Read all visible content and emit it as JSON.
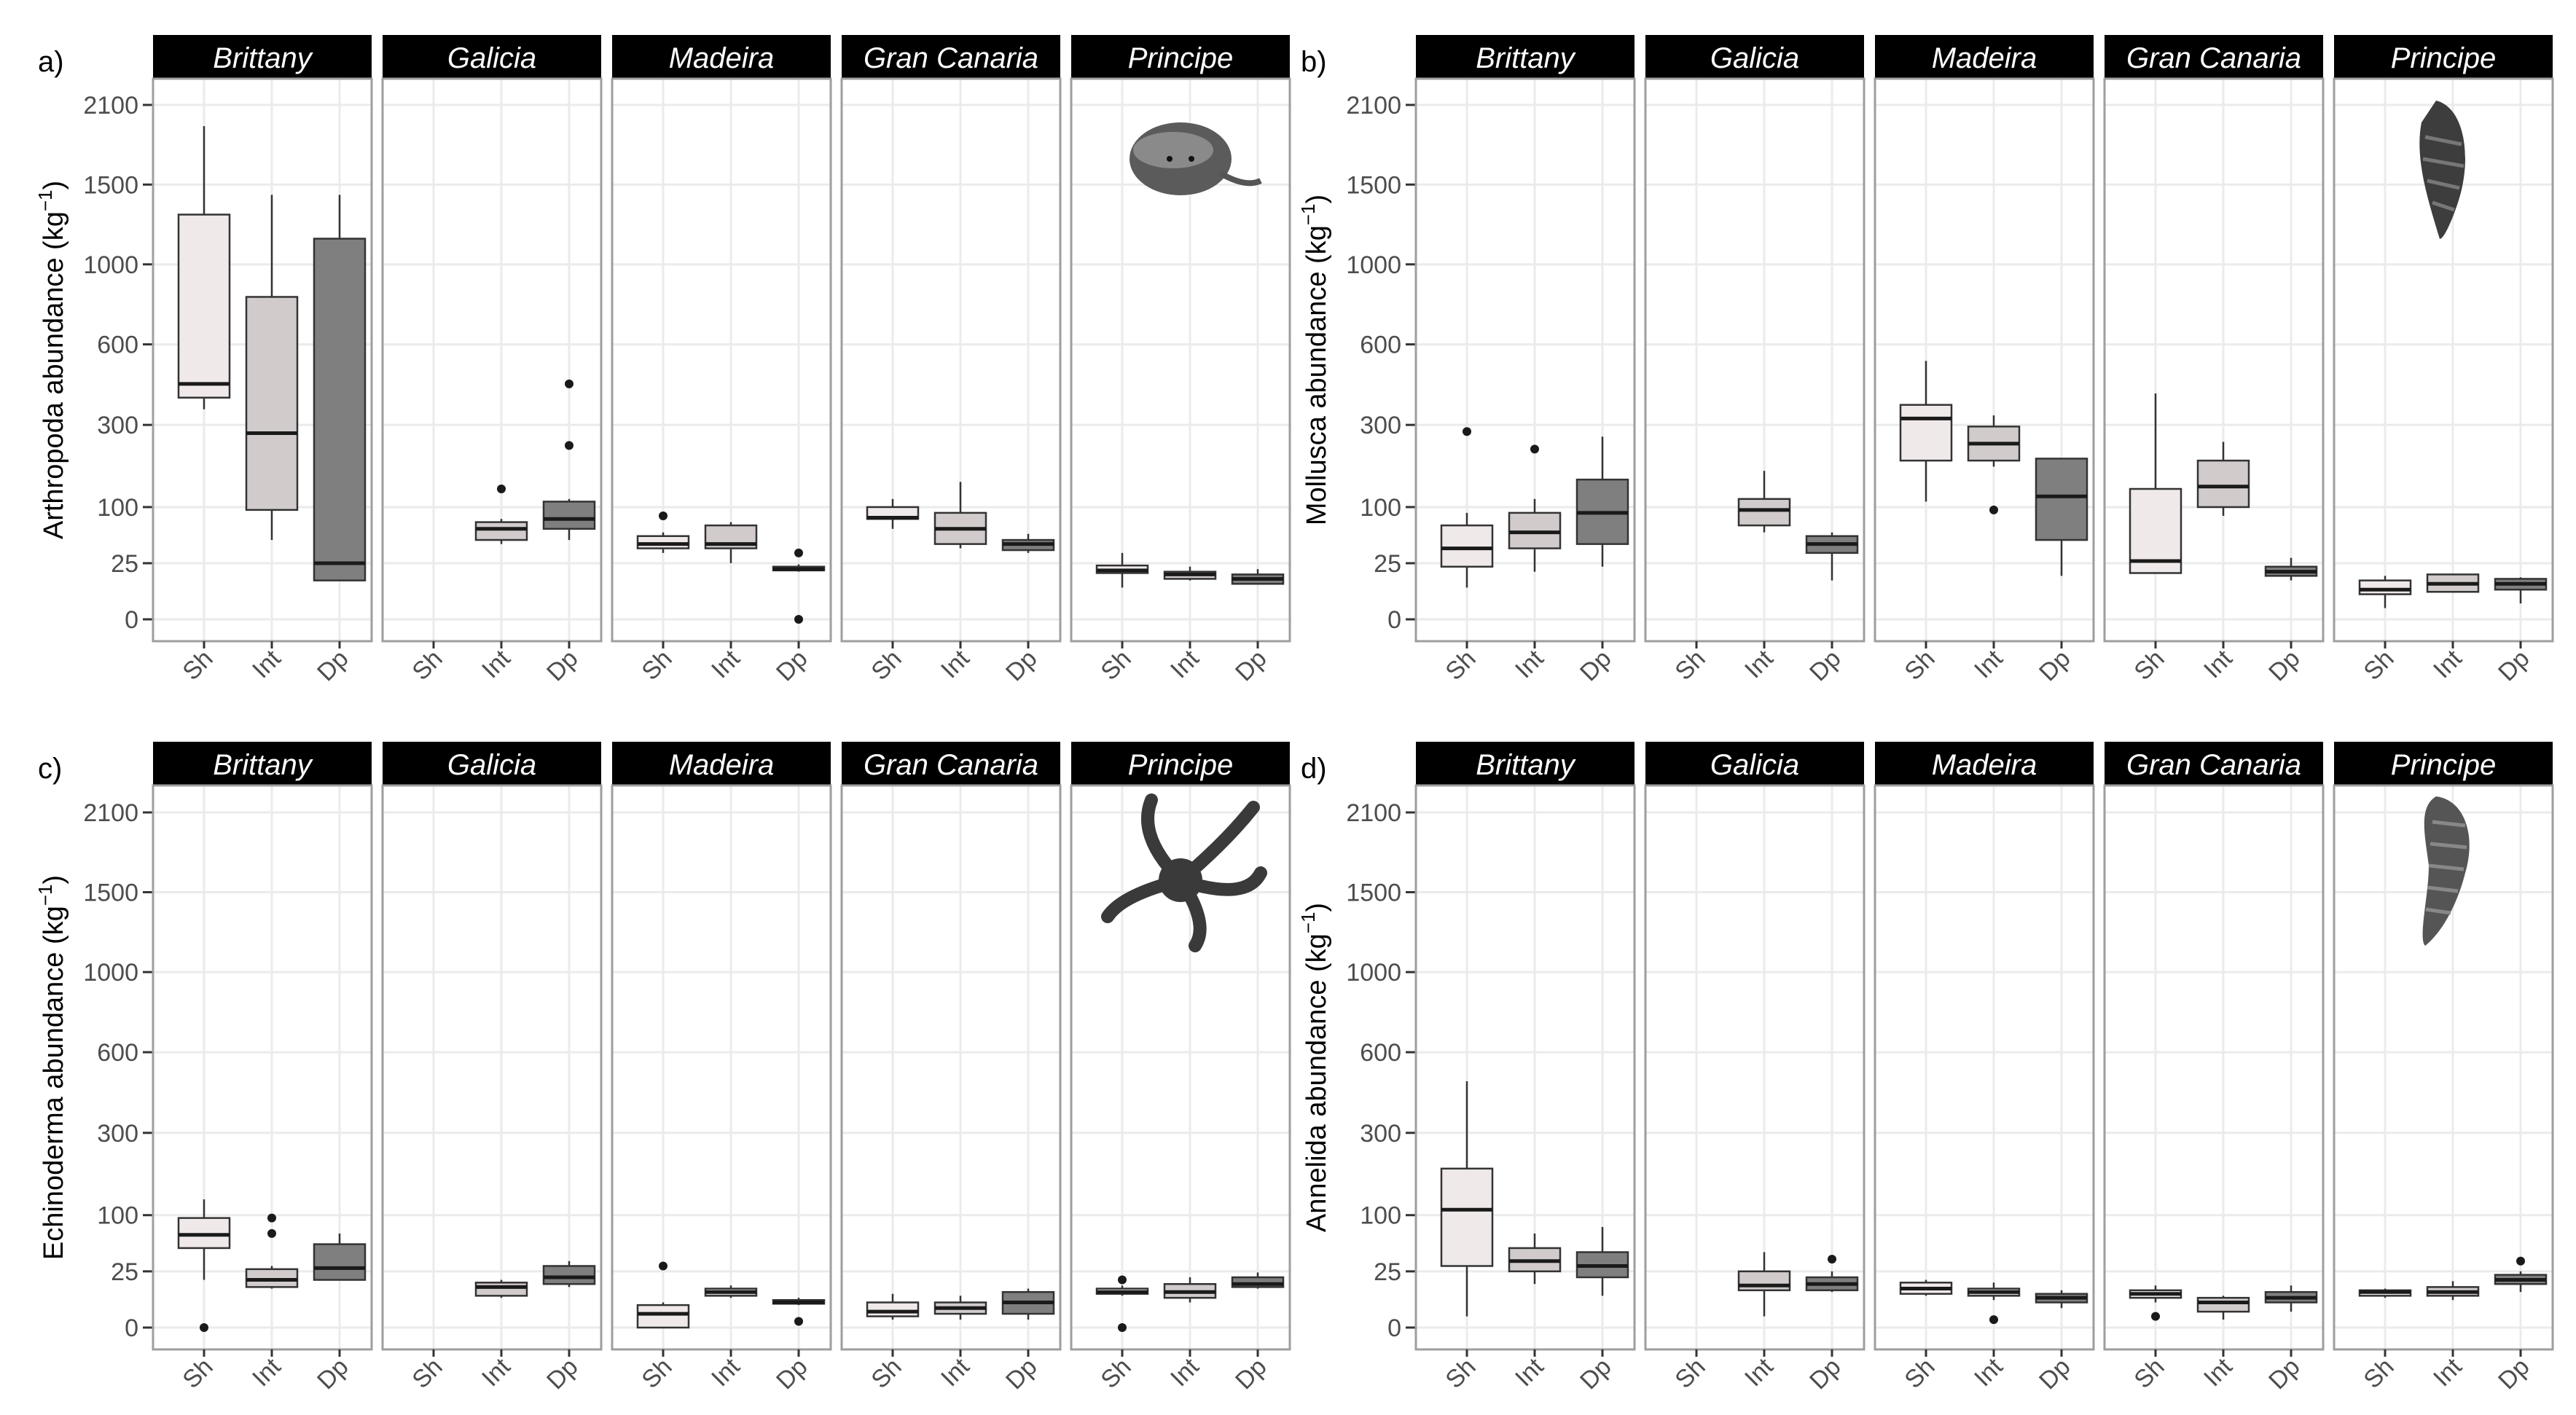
{
  "colors": {
    "Sh": "#f0e9e9",
    "Int": "#d1cbcb",
    "Dp": "#7f7f7f",
    "strip": "#000000",
    "grid": "#ebebeb",
    "frame": "#9e9e9e",
    "median": "#1a1a1a"
  },
  "images": {
    "a": "crab-photo-icon",
    "b": "gastropod-shell-photo-icon",
    "c": "brittle-star-photo-icon",
    "d": "polychaete-worm-photo-icon"
  },
  "chart_data": [
    {
      "type": "boxplot",
      "panel": "a)",
      "ylabel_main": "Arthropoda abundance (kg",
      "ylabel_sup": "−1",
      "ylabel_end": ")",
      "y_scale": "square-root",
      "yticks": [
        0,
        25,
        100,
        300,
        600,
        1000,
        1500,
        2100
      ],
      "ylim": [
        0,
        2300
      ],
      "categories": [
        "Sh",
        "Int",
        "Dp"
      ],
      "facets": [
        {
          "name": "Brittany",
          "boxes": [
            {
              "group": "Sh",
              "min": 350,
              "q1": 390,
              "median": 440,
              "q3": 1300,
              "max": 1930,
              "outliers": []
            },
            {
              "group": "Int",
              "min": 50,
              "q1": 95,
              "median": 275,
              "q3": 825,
              "max": 1430,
              "outliers": []
            },
            {
              "group": "Dp",
              "min": 12,
              "q1": 12,
              "median": 25,
              "q3": 1150,
              "max": 1430,
              "outliers": []
            }
          ]
        },
        {
          "name": "Galicia",
          "boxes": [
            {
              "group": "Int",
              "min": 45,
              "q1": 50,
              "median": 65,
              "q3": 75,
              "max": 80,
              "outliers": [
                135
              ]
            },
            {
              "group": "Dp",
              "min": 50,
              "q1": 65,
              "median": 80,
              "q3": 110,
              "max": 115,
              "outliers": [
                240,
                440
              ]
            }
          ]
        },
        {
          "name": "Madeira",
          "boxes": [
            {
              "group": "Sh",
              "min": 35,
              "q1": 40,
              "median": 45,
              "q3": 55,
              "max": 60,
              "outliers": [
                85
              ]
            },
            {
              "group": "Int",
              "min": 25,
              "q1": 40,
              "median": 45,
              "q3": 70,
              "max": 75,
              "outliers": []
            },
            {
              "group": "Dp",
              "min": 18,
              "q1": 19,
              "median": 20,
              "q3": 22,
              "max": 24,
              "outliers": [
                0,
                35
              ]
            }
          ]
        },
        {
          "name": "Gran Canaria",
          "boxes": [
            {
              "group": "Sh",
              "min": 65,
              "q1": 80,
              "median": 82,
              "q3": 100,
              "max": 115,
              "outliers": []
            },
            {
              "group": "Int",
              "min": 40,
              "q1": 45,
              "median": 65,
              "q3": 90,
              "max": 150,
              "outliers": []
            },
            {
              "group": "Dp",
              "min": 35,
              "q1": 38,
              "median": 45,
              "q3": 50,
              "max": 58,
              "outliers": []
            }
          ]
        },
        {
          "name": "Principe",
          "boxes": [
            {
              "group": "Sh",
              "min": 8,
              "q1": 17,
              "median": 19,
              "q3": 23,
              "max": 35,
              "outliers": []
            },
            {
              "group": "Int",
              "min": 12,
              "q1": 13,
              "median": 16,
              "q3": 18,
              "max": 22,
              "outliers": []
            },
            {
              "group": "Dp",
              "min": 10,
              "q1": 10,
              "median": 13,
              "q3": 16,
              "max": 20,
              "outliers": []
            }
          ]
        }
      ]
    },
    {
      "type": "boxplot",
      "panel": "b)",
      "ylabel_main": "Mollusca abundance (kg",
      "ylabel_sup": "−1",
      "ylabel_end": ")",
      "y_scale": "square-root",
      "yticks": [
        0,
        25,
        100,
        300,
        600,
        1000,
        1500,
        2100
      ],
      "ylim": [
        0,
        2300
      ],
      "categories": [
        "Sh",
        "Int",
        "Dp"
      ],
      "facets": [
        {
          "name": "Brittany",
          "boxes": [
            {
              "group": "Sh",
              "min": 8,
              "q1": 22,
              "median": 40,
              "q3": 70,
              "max": 90,
              "outliers": [
                280
              ]
            },
            {
              "group": "Int",
              "min": 18,
              "q1": 40,
              "median": 60,
              "q3": 90,
              "max": 115,
              "outliers": [
                230
              ]
            },
            {
              "group": "Dp",
              "min": 22,
              "q1": 45,
              "median": 90,
              "q3": 155,
              "max": 265,
              "outliers": []
            }
          ]
        },
        {
          "name": "Galicia",
          "boxes": [
            {
              "group": "Int",
              "min": 60,
              "q1": 70,
              "median": 95,
              "q3": 115,
              "max": 175,
              "outliers": []
            },
            {
              "group": "Dp",
              "min": 12,
              "q1": 35,
              "median": 45,
              "q3": 55,
              "max": 60,
              "outliers": []
            }
          ]
        },
        {
          "name": "Madeira",
          "boxes": [
            {
              "group": "Sh",
              "min": 110,
              "q1": 200,
              "median": 320,
              "q3": 365,
              "max": 530,
              "outliers": []
            },
            {
              "group": "Int",
              "min": 185,
              "q1": 200,
              "median": 245,
              "q3": 295,
              "max": 330,
              "outliers": [
                95
              ]
            },
            {
              "group": "Dp",
              "min": 15,
              "q1": 50,
              "median": 120,
              "q3": 205,
              "max": 205,
              "outliers": []
            }
          ]
        },
        {
          "name": "Gran Canaria",
          "boxes": [
            {
              "group": "Sh",
              "min": 17,
              "q1": 17,
              "median": 27,
              "q3": 135,
              "max": 405,
              "outliers": []
            },
            {
              "group": "Int",
              "min": 85,
              "q1": 100,
              "median": 140,
              "q3": 200,
              "max": 250,
              "outliers": []
            },
            {
              "group": "Dp",
              "min": 12,
              "q1": 15,
              "median": 18,
              "q3": 22,
              "max": 30,
              "outliers": []
            }
          ]
        },
        {
          "name": "Principe",
          "boxes": [
            {
              "group": "Sh",
              "min": 1,
              "q1": 5,
              "median": 7,
              "q3": 12,
              "max": 15,
              "outliers": []
            },
            {
              "group": "Int",
              "min": 6,
              "q1": 6,
              "median": 10,
              "q3": 16,
              "max": 16,
              "outliers": []
            },
            {
              "group": "Dp",
              "min": 2,
              "q1": 7,
              "median": 10,
              "q3": 13,
              "max": 14,
              "outliers": []
            }
          ]
        }
      ]
    },
    {
      "type": "boxplot",
      "panel": "c)",
      "ylabel_main": "Echinoderma abundance (kg",
      "ylabel_sup": "−1",
      "ylabel_end": ")",
      "y_scale": "square-root",
      "yticks": [
        0,
        25,
        100,
        300,
        600,
        1000,
        1500,
        2100
      ],
      "ylim": [
        0,
        2300
      ],
      "categories": [
        "Sh",
        "Int",
        "Dp"
      ],
      "facets": [
        {
          "name": "Brittany",
          "boxes": [
            {
              "group": "Sh",
              "min": 18,
              "q1": 50,
              "median": 68,
              "q3": 95,
              "max": 130,
              "outliers": [
                0
              ]
            },
            {
              "group": "Int",
              "min": 12,
              "q1": 13,
              "median": 18,
              "q3": 27,
              "max": 30,
              "outliers": [
                70,
                95
              ]
            },
            {
              "group": "Dp",
              "min": 18,
              "q1": 18,
              "median": 28,
              "q3": 55,
              "max": 70,
              "outliers": []
            }
          ]
        },
        {
          "name": "Galicia",
          "boxes": [
            {
              "group": "Int",
              "min": 7,
              "q1": 8,
              "median": 13,
              "q3": 16,
              "max": 18,
              "outliers": []
            },
            {
              "group": "Dp",
              "min": 13,
              "q1": 15,
              "median": 20,
              "q3": 30,
              "max": 35,
              "outliers": []
            }
          ]
        },
        {
          "name": "Madeira",
          "boxes": [
            {
              "group": "Sh",
              "min": 0,
              "q1": 0,
              "median": 1.5,
              "q3": 4,
              "max": 5,
              "outliers": [
                30
              ]
            },
            {
              "group": "Int",
              "min": 7,
              "q1": 8,
              "median": 10,
              "q3": 12,
              "max": 14,
              "outliers": []
            },
            {
              "group": "Dp",
              "min": 4,
              "q1": 4.5,
              "median": 5,
              "q3": 6,
              "max": 7,
              "outliers": [
                0.3
              ]
            }
          ]
        },
        {
          "name": "Gran Canaria",
          "boxes": [
            {
              "group": "Sh",
              "min": 0.5,
              "q1": 1,
              "median": 2,
              "q3": 5,
              "max": 9,
              "outliers": []
            },
            {
              "group": "Int",
              "min": 0.5,
              "q1": 1.5,
              "median": 3,
              "q3": 5,
              "max": 8,
              "outliers": []
            },
            {
              "group": "Dp",
              "min": 0.5,
              "q1": 1.5,
              "median": 5,
              "q3": 10,
              "max": 12,
              "outliers": []
            }
          ]
        },
        {
          "name": "Principe",
          "boxes": [
            {
              "group": "Sh",
              "min": 8,
              "q1": 9,
              "median": 10,
              "q3": 12,
              "max": 14,
              "outliers": [
                0,
                18
              ]
            },
            {
              "group": "Int",
              "min": 5,
              "q1": 7,
              "median": 10,
              "q3": 15,
              "max": 20,
              "outliers": []
            },
            {
              "group": "Dp",
              "min": 12,
              "q1": 13,
              "median": 15,
              "q3": 20,
              "max": 24,
              "outliers": []
            }
          ]
        }
      ]
    },
    {
      "type": "boxplot",
      "panel": "d)",
      "ylabel_main": "Annelida abundance (kg",
      "ylabel_sup": "−1",
      "ylabel_end": ")",
      "y_scale": "square-root",
      "yticks": [
        0,
        25,
        100,
        300,
        600,
        1000,
        1500,
        2100
      ],
      "ylim": [
        0,
        2300
      ],
      "categories": [
        "Sh",
        "Int",
        "Dp"
      ],
      "facets": [
        {
          "name": "Brittany",
          "boxes": [
            {
              "group": "Sh",
              "min": 1,
              "q1": 30,
              "median": 110,
              "q3": 200,
              "max": 480,
              "outliers": []
            },
            {
              "group": "Int",
              "min": 15,
              "q1": 25,
              "median": 35,
              "q3": 50,
              "max": 70,
              "outliers": []
            },
            {
              "group": "Dp",
              "min": 8,
              "q1": 20,
              "median": 30,
              "q3": 45,
              "max": 80,
              "outliers": []
            }
          ]
        },
        {
          "name": "Galicia",
          "boxes": [
            {
              "group": "Int",
              "min": 1,
              "q1": 11,
              "median": 14,
              "q3": 25,
              "max": 45,
              "outliers": []
            },
            {
              "group": "Dp",
              "min": 10,
              "q1": 11,
              "median": 15,
              "q3": 20,
              "max": 25,
              "outliers": [
                37
              ]
            }
          ]
        },
        {
          "name": "Madeira",
          "boxes": [
            {
              "group": "Sh",
              "min": 8,
              "q1": 9,
              "median": 12,
              "q3": 16,
              "max": 18,
              "outliers": []
            },
            {
              "group": "Int",
              "min": 6,
              "q1": 8,
              "median": 10,
              "q3": 12,
              "max": 16,
              "outliers": [
                0.5
              ]
            },
            {
              "group": "Dp",
              "min": 3,
              "q1": 5,
              "median": 7,
              "q3": 9,
              "max": 11,
              "outliers": []
            }
          ]
        },
        {
          "name": "Gran Canaria",
          "boxes": [
            {
              "group": "Sh",
              "min": 5,
              "q1": 7,
              "median": 9,
              "q3": 11,
              "max": 14,
              "outliers": [
                1
              ]
            },
            {
              "group": "Int",
              "min": 0.5,
              "q1": 2,
              "median": 5,
              "q3": 7,
              "max": 8,
              "outliers": []
            },
            {
              "group": "Dp",
              "min": 2,
              "q1": 5,
              "median": 7,
              "q3": 10,
              "max": 14,
              "outliers": []
            }
          ]
        },
        {
          "name": "Principe",
          "boxes": [
            {
              "group": "Sh",
              "min": 7,
              "q1": 8,
              "median": 10,
              "q3": 11,
              "max": 12,
              "outliers": []
            },
            {
              "group": "Int",
              "min": 6,
              "q1": 8,
              "median": 10,
              "q3": 13,
              "max": 17,
              "outliers": []
            },
            {
              "group": "Dp",
              "min": 10,
              "q1": 15,
              "median": 18,
              "q3": 22,
              "max": 25,
              "outliers": [
                35
              ]
            }
          ]
        }
      ]
    }
  ]
}
